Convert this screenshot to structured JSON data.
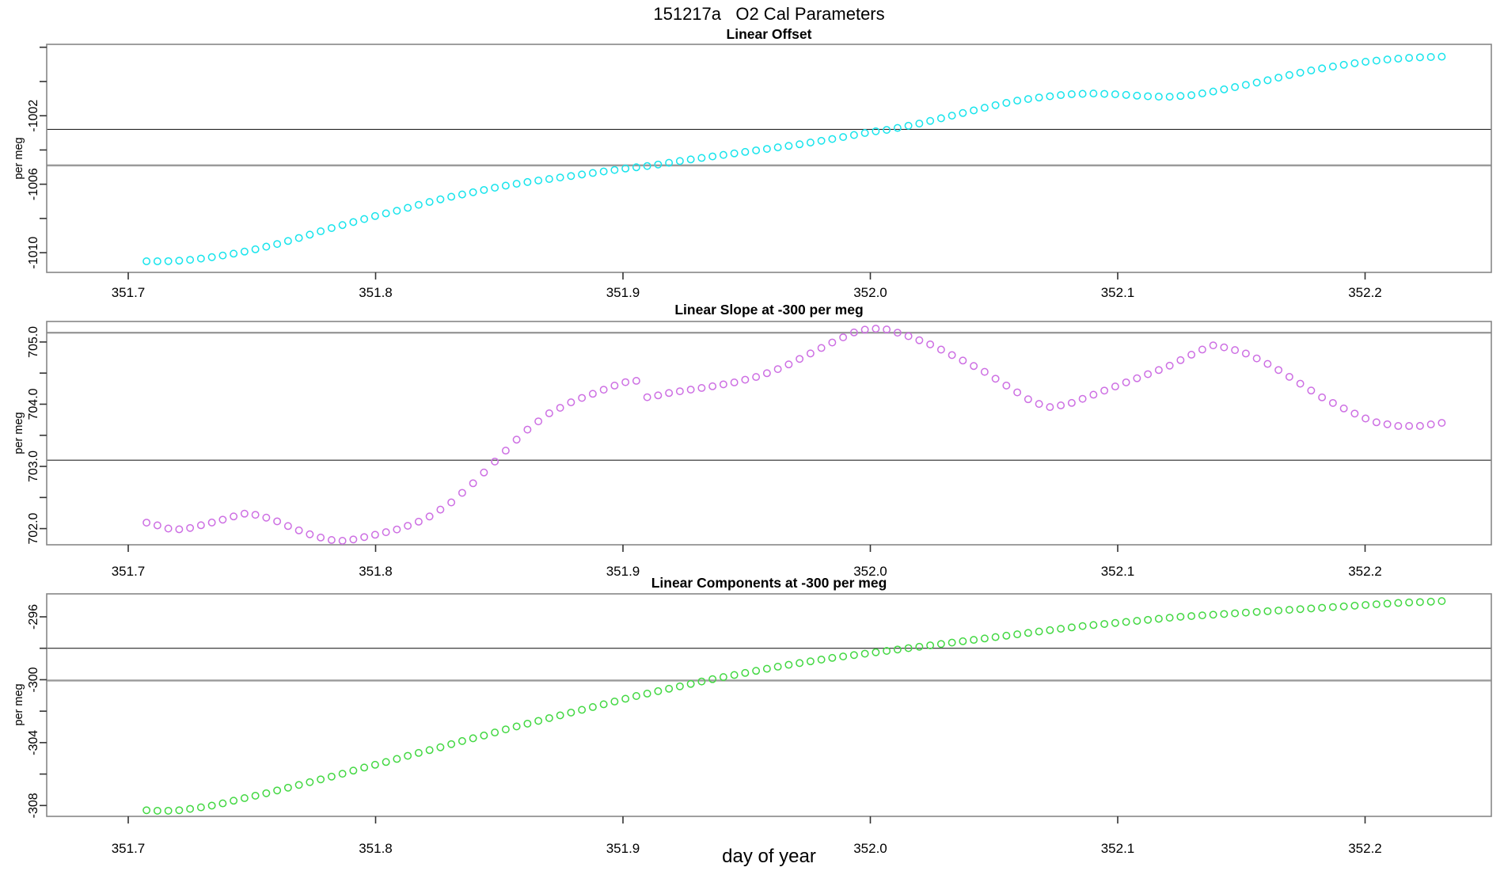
{
  "figure": {
    "title": "151217a   O2 Cal Parameters",
    "xlabel": "day of year",
    "background": "#ffffff",
    "frame_color": "#878787",
    "tick_color": "#333333"
  },
  "chart_data": {
    "type": "scatter",
    "title": "151217a   O2 Cal Parameters",
    "xlabel": "day of year",
    "marker_shape": "open-circle",
    "grid": false,
    "x_axis": {
      "label": "day of year",
      "xlim": [
        351.667,
        352.251
      ],
      "ticks": [
        351.7,
        351.8,
        351.9,
        352.0,
        352.1,
        352.2
      ],
      "tick_labels": [
        "351.7",
        "351.8",
        "351.9",
        "352.0",
        "352.1",
        "352.2"
      ],
      "sampling": {
        "start": 351.7074,
        "step": 0.0044,
        "n": 120
      }
    },
    "panels": [
      {
        "name": "linear-offset",
        "title": "Linear Offset",
        "ylabel": "per meg",
        "marker_color": "#17E4EC",
        "ylim": [
          -1011.15,
          -997.83
        ],
        "yticks": [
          -1010,
          -1008,
          -1006,
          -1004,
          -1002,
          -1000,
          -998
        ],
        "ytick_labels": [
          "-1010",
          "",
          "-1006",
          "",
          "-1002",
          "",
          ""
        ],
        "ref_lines": [
          {
            "value": -1002.8,
            "color": "#262626",
            "width": 1.2
          },
          {
            "value": -1004.9,
            "color": "#9a9a9a",
            "width": 2.4
          }
        ],
        "anchors": {
          "x": [
            351.707,
            351.715,
            351.723,
            351.732,
            351.741,
            351.75,
            351.76,
            351.77,
            351.78,
            351.79,
            351.8,
            351.81,
            351.82,
            351.83,
            351.84,
            351.85,
            351.86,
            351.87,
            351.88,
            351.89,
            351.9,
            351.912,
            351.925,
            351.94,
            351.955,
            351.97,
            351.985,
            352.0,
            352.008,
            352.02,
            352.03,
            352.04,
            352.05,
            352.06,
            352.07,
            352.08,
            352.09,
            352.1,
            352.11,
            352.12,
            352.13,
            352.14,
            352.15,
            352.16,
            352.17,
            352.18,
            352.19,
            352.2,
            352.21,
            352.22,
            352.231
          ],
          "y": [
            -1010.5,
            -1010.5,
            -1010.45,
            -1010.3,
            -1010.1,
            -1009.85,
            -1009.5,
            -1009.1,
            -1008.65,
            -1008.25,
            -1007.85,
            -1007.5,
            -1007.1,
            -1006.75,
            -1006.45,
            -1006.15,
            -1005.9,
            -1005.7,
            -1005.5,
            -1005.3,
            -1005.1,
            -1004.9,
            -1004.6,
            -1004.3,
            -1004.0,
            -1003.7,
            -1003.35,
            -1002.95,
            -1002.8,
            -1002.45,
            -1002.1,
            -1001.75,
            -1001.4,
            -1001.1,
            -1000.9,
            -1000.75,
            -1000.7,
            -1000.75,
            -1000.85,
            -1000.9,
            -1000.8,
            -1000.55,
            -1000.25,
            -999.95,
            -999.6,
            -999.3,
            -999.05,
            -998.85,
            -998.7,
            -998.6,
            -998.55
          ]
        }
      },
      {
        "name": "linear-slope",
        "title": "Linear Slope at -300 per meg",
        "ylabel": "per meg",
        "marker_color": "#CD6FE3",
        "ylim": [
          701.74,
          705.33
        ],
        "yticks": [
          702,
          702.5,
          703,
          703.5,
          704,
          704.5,
          705
        ],
        "ytick_labels": [
          "702.0",
          "",
          "703.0",
          "",
          "704.0",
          "",
          "705.0"
        ],
        "ref_lines": [
          {
            "value": 705.15,
            "color": "#9a9a9a",
            "width": 2.4
          },
          {
            "value": 703.1,
            "color": "#262626",
            "width": 1.2
          }
        ],
        "anchors": {
          "x": [
            351.707,
            351.712,
            351.718,
            351.724,
            351.73,
            351.737,
            351.743,
            351.748,
            351.754,
            351.76,
            351.767,
            351.774,
            351.781,
            351.788,
            351.795,
            351.802,
            351.81,
            351.82,
            351.83,
            351.84,
            351.85,
            351.86,
            351.87,
            351.88,
            351.89,
            351.898,
            351.905,
            351.91,
            351.917,
            351.925,
            351.935,
            351.945,
            351.955,
            351.965,
            351.975,
            351.985,
            351.993,
            352.0,
            352.007,
            352.015,
            352.025,
            352.035,
            352.045,
            352.055,
            352.065,
            352.072,
            352.08,
            352.09,
            352.1,
            352.11,
            352.12,
            352.13,
            352.138,
            352.145,
            352.153,
            352.163,
            352.173,
            352.183,
            352.193,
            352.203,
            352.213,
            352.222,
            352.231
          ],
          "y": [
            702.1,
            702.05,
            701.98,
            702.0,
            702.06,
            702.13,
            702.2,
            702.25,
            702.2,
            702.12,
            702.0,
            701.9,
            701.82,
            701.8,
            701.86,
            701.92,
            702.0,
            702.15,
            702.4,
            702.75,
            703.15,
            703.55,
            703.85,
            704.05,
            704.2,
            704.32,
            704.4,
            704.1,
            704.17,
            704.22,
            704.28,
            704.35,
            704.45,
            704.6,
            704.8,
            705.0,
            705.15,
            705.22,
            705.2,
            705.1,
            704.95,
            704.75,
            704.55,
            704.3,
            704.05,
            703.95,
            704.0,
            704.15,
            704.3,
            704.45,
            704.6,
            704.8,
            704.95,
            704.9,
            704.8,
            704.6,
            704.35,
            704.1,
            703.9,
            703.72,
            703.65,
            703.65,
            703.7
          ]
        }
      },
      {
        "name": "linear-components",
        "title": "Linear Components at -300 per meg",
        "ylabel": "per meg",
        "marker_color": "#43D843",
        "ylim": [
          -308.69,
          -294.54
        ],
        "yticks": [
          -308,
          -306,
          -304,
          -302,
          -300,
          -298,
          -296
        ],
        "ytick_labels": [
          "-308",
          "",
          "-304",
          "",
          "-300",
          "",
          "-296"
        ],
        "ref_lines": [
          {
            "value": -298.0,
            "color": "#262626",
            "width": 1.2
          },
          {
            "value": -300.05,
            "color": "#9a9a9a",
            "width": 2.4
          }
        ],
        "anchors": {
          "x": [
            351.707,
            351.714,
            351.721,
            351.728,
            351.736,
            351.745,
            351.755,
            351.765,
            351.775,
            351.785,
            351.795,
            351.805,
            351.815,
            351.825,
            351.835,
            351.845,
            351.855,
            351.865,
            351.875,
            351.885,
            351.895,
            351.905,
            351.915,
            351.925,
            351.935,
            351.945,
            351.955,
            351.965,
            351.975,
            351.985,
            351.995,
            352.005,
            352.015,
            352.025,
            352.035,
            352.045,
            352.055,
            352.065,
            352.075,
            352.085,
            352.095,
            352.105,
            352.115,
            352.125,
            352.135,
            352.145,
            352.155,
            352.165,
            352.175,
            352.185,
            352.195,
            352.205,
            352.215,
            352.225,
            352.231
          ],
          "y": [
            -308.3,
            -308.35,
            -308.3,
            -308.15,
            -307.95,
            -307.6,
            -307.25,
            -306.85,
            -306.45,
            -306.05,
            -305.6,
            -305.2,
            -304.75,
            -304.35,
            -303.9,
            -303.5,
            -303.05,
            -302.65,
            -302.25,
            -301.85,
            -301.45,
            -301.05,
            -300.7,
            -300.35,
            -300.0,
            -299.7,
            -299.4,
            -299.1,
            -298.85,
            -298.6,
            -298.4,
            -298.2,
            -298.0,
            -297.8,
            -297.6,
            -297.4,
            -297.2,
            -297.0,
            -296.8,
            -296.6,
            -296.45,
            -296.3,
            -296.15,
            -296.0,
            -295.9,
            -295.8,
            -295.7,
            -295.6,
            -295.5,
            -295.4,
            -295.3,
            -295.2,
            -295.1,
            -295.05,
            -295.0
          ]
        }
      }
    ]
  }
}
